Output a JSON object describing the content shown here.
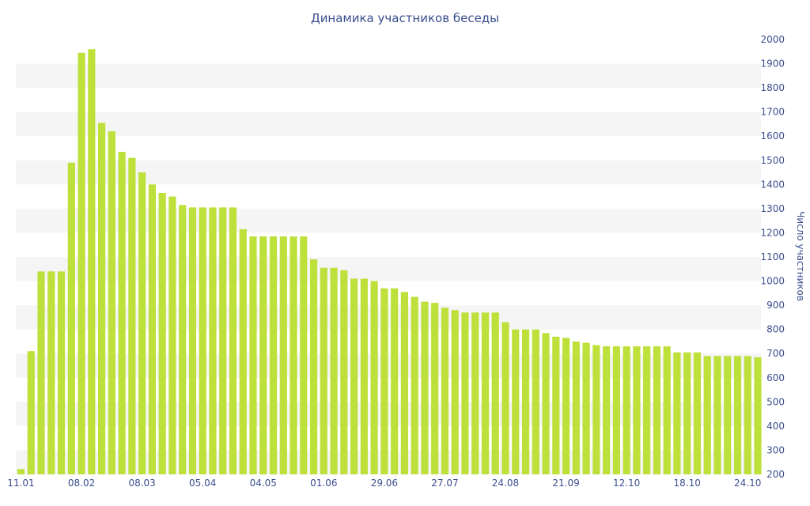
{
  "chart_data": {
    "type": "bar",
    "title": "Динамика участников беседы",
    "xlabel": "",
    "ylabel": "Число участников",
    "ylim": [
      200,
      2000
    ],
    "y_ticks": [
      200,
      300,
      400,
      500,
      600,
      700,
      800,
      900,
      1000,
      1100,
      1200,
      1300,
      1400,
      1500,
      1600,
      1700,
      1800,
      1900,
      2000
    ],
    "y_axis_side": "right",
    "grid": "alternating horizontal bands",
    "x_tick_labels": [
      "11.01",
      "08.02",
      "08.03",
      "05.04",
      "04.05",
      "01.06",
      "29.06",
      "27.07",
      "24.08",
      "21.09",
      "12.10",
      "18.10",
      "24.10"
    ],
    "x_tick_label_bars": [
      0,
      6,
      12,
      18,
      24,
      30,
      36,
      42,
      48,
      54,
      60,
      66,
      72
    ],
    "values": [
      222,
      710,
      1040,
      1040,
      1040,
      1490,
      1945,
      1960,
      1655,
      1620,
      1535,
      1510,
      1450,
      1400,
      1365,
      1350,
      1315,
      1305,
      1305,
      1305,
      1305,
      1305,
      1215,
      1185,
      1185,
      1185,
      1185,
      1185,
      1185,
      1090,
      1055,
      1055,
      1045,
      1010,
      1010,
      1000,
      970,
      970,
      955,
      935,
      915,
      910,
      890,
      880,
      870,
      870,
      870,
      870,
      830,
      800,
      800,
      800,
      785,
      770,
      765,
      750,
      745,
      735,
      730,
      730,
      730,
      730,
      730,
      730,
      730,
      705,
      705,
      705,
      690,
      690,
      690,
      690,
      690,
      685
    ],
    "colors": {
      "bar": "#bde03a",
      "band": "#f5f5f5",
      "text": "#3b4f8f"
    }
  }
}
